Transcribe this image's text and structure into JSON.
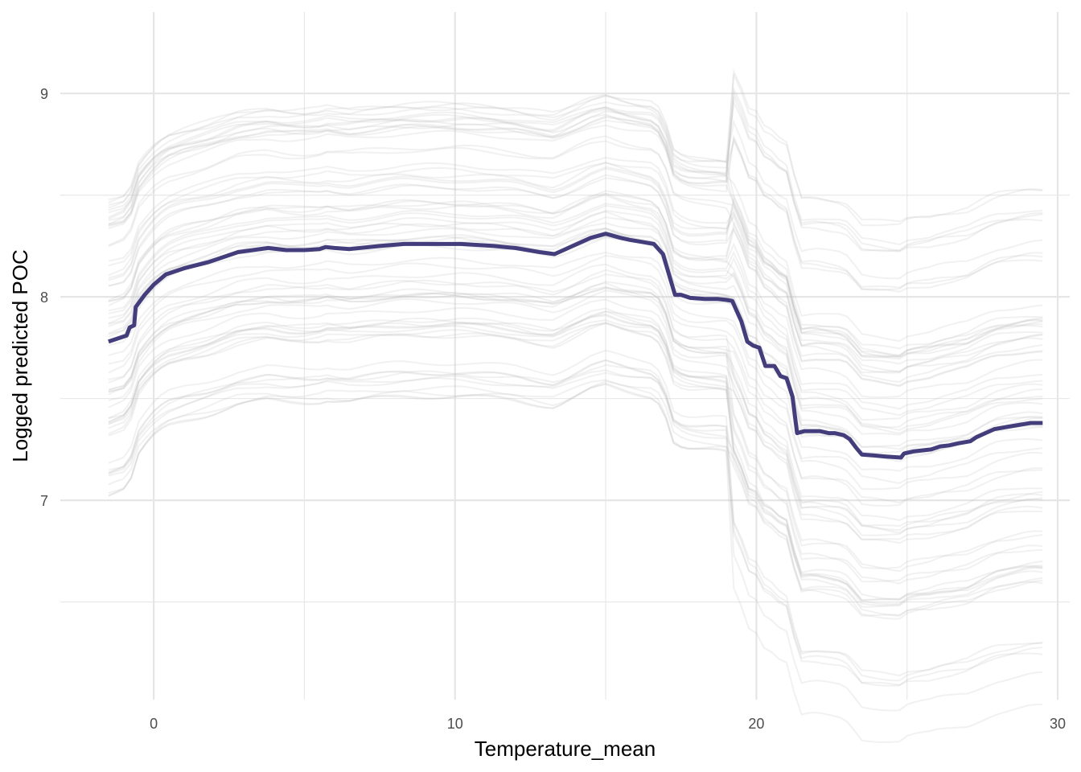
{
  "chart_data": {
    "type": "line",
    "title": "",
    "xlabel": "Temperature_mean",
    "ylabel": "Logged predicted POC",
    "xlim": [
      -3.1,
      30.4
    ],
    "ylim": [
      6.02,
      9.4
    ],
    "x_ticks": [
      0,
      10,
      20,
      30
    ],
    "x_tick_labels": [
      "0",
      "10",
      "20",
      "30"
    ],
    "y_ticks": [
      7,
      8,
      9
    ],
    "y_tick_labels": [
      "7",
      "8",
      "9"
    ],
    "grid": true,
    "legend": "none",
    "colors": {
      "mean_line": "#433d7c",
      "ice_lines": "#bdbdbd",
      "grid": "#e6e6e6"
    },
    "series": [
      {
        "role": "average",
        "x": [
          -1.5,
          -0.9,
          -0.8,
          -0.65,
          -0.6,
          -0.3,
          0,
          0.4,
          1.0,
          1.8,
          2.8,
          3.8,
          4.4,
          5.0,
          5.5,
          5.7,
          6.0,
          6.5,
          7.5,
          8.3,
          9.3,
          10.2,
          11.3,
          12.0,
          12.8,
          13.3,
          13.6,
          14.5,
          15.0,
          15.5,
          15.8,
          16.2,
          16.6,
          16.9,
          17.1,
          17.3,
          17.5,
          17.8,
          18.3,
          18.7,
          19.0,
          19.2,
          19.35,
          19.5,
          19.7,
          19.9,
          20.1,
          20.3,
          20.6,
          20.8,
          21.0,
          21.2,
          21.35,
          21.6,
          21.8,
          22.1,
          22.4,
          22.6,
          22.9,
          23.1,
          23.3,
          23.5,
          23.9,
          24.3,
          24.8,
          24.9,
          25.2,
          25.5,
          25.8,
          26.1,
          26.4,
          26.7,
          27.1,
          27.3,
          27.6,
          27.9,
          28.3,
          28.7,
          29.1,
          29.5
        ],
        "y": [
          7.78,
          7.81,
          7.85,
          7.86,
          7.95,
          8.01,
          8.06,
          8.11,
          8.14,
          8.17,
          8.22,
          8.24,
          8.23,
          8.23,
          8.235,
          8.245,
          8.24,
          8.235,
          8.25,
          8.26,
          8.26,
          8.26,
          8.25,
          8.24,
          8.22,
          8.21,
          8.23,
          8.29,
          8.31,
          8.29,
          8.28,
          8.27,
          8.26,
          8.21,
          8.11,
          8.01,
          8.01,
          7.995,
          7.99,
          7.99,
          7.985,
          7.98,
          7.93,
          7.88,
          7.78,
          7.76,
          7.75,
          7.66,
          7.66,
          7.61,
          7.6,
          7.51,
          7.33,
          7.34,
          7.34,
          7.34,
          7.33,
          7.33,
          7.32,
          7.3,
          7.26,
          7.225,
          7.22,
          7.215,
          7.21,
          7.23,
          7.24,
          7.245,
          7.25,
          7.265,
          7.27,
          7.28,
          7.29,
          7.31,
          7.33,
          7.35,
          7.36,
          7.37,
          7.38,
          7.38
        ]
      }
    ]
  }
}
